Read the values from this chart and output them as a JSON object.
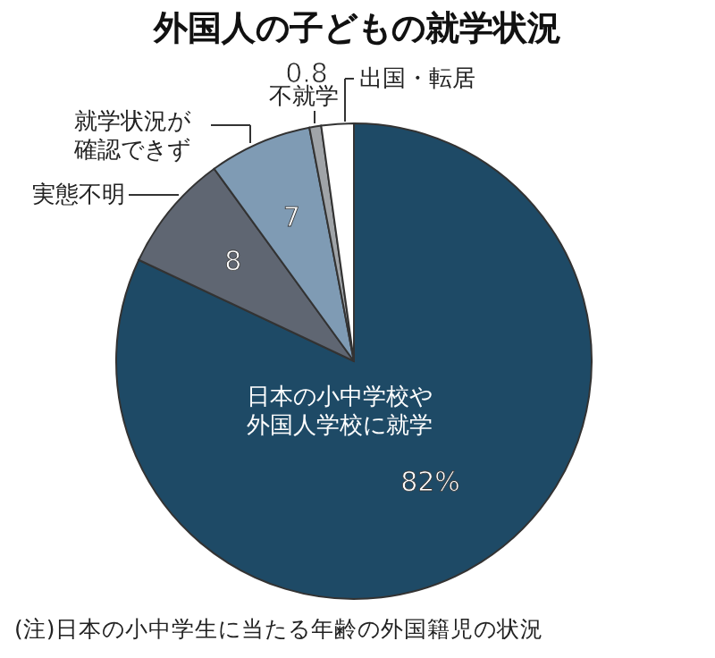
{
  "chart_data": {
    "type": "pie",
    "title": "外国人の子どもの就学状況",
    "categories": [
      "日本の小中学校や外国人学校に就学",
      "実態不明",
      "就学状況が確認できず",
      "不就学",
      "出国・転居"
    ],
    "values": [
      82,
      8,
      7,
      0.8,
      2.2
    ],
    "value_labels": [
      "82%",
      "8",
      "7",
      "0.8",
      null
    ],
    "colors": [
      "#1e4a66",
      "#5f6672",
      "#7f9bb4",
      "#a0a4a8",
      "#ffffff"
    ],
    "annotations": [
      "(注)日本の小中学生に当たる年齢の外国籍児の状況"
    ]
  }
}
